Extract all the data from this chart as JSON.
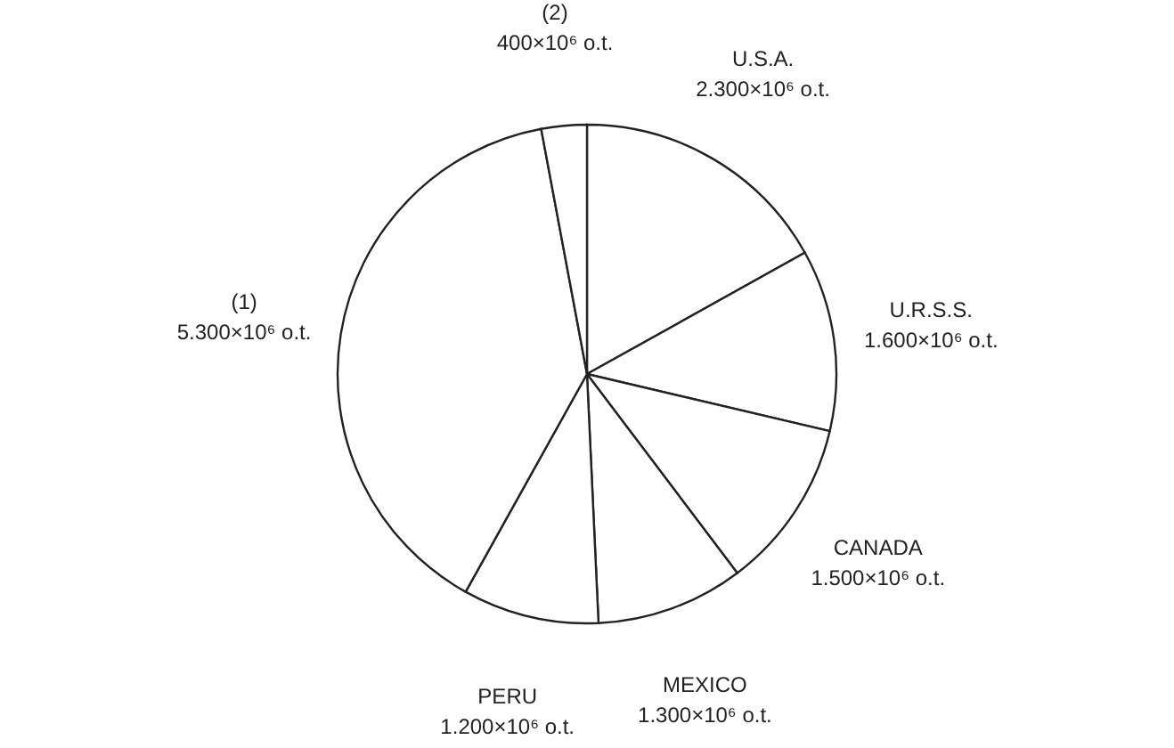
{
  "chart_data": {
    "type": "pie",
    "categories": [
      "U.S.A.",
      "U.R.S.S.",
      "CANADA",
      "MEXICO",
      "PERU",
      "(1)",
      "(2)"
    ],
    "values": [
      2300,
      1600,
      1500,
      1300,
      1200,
      5300,
      400
    ],
    "value_labels": [
      "2.300×10⁶ o.t.",
      "1.600×10⁶ o.t.",
      "1.500×10⁶ o.t.",
      "1.300×10⁶ o.t.",
      "1.200×10⁶ o.t.",
      "5.300×10⁶ o.t.",
      "400×10⁶ o.t."
    ],
    "colors": [
      "#ffffff",
      "#ffffff",
      "#ffffff",
      "#ffffff",
      "#ffffff",
      "#ffffff",
      "#ffffff"
    ]
  }
}
